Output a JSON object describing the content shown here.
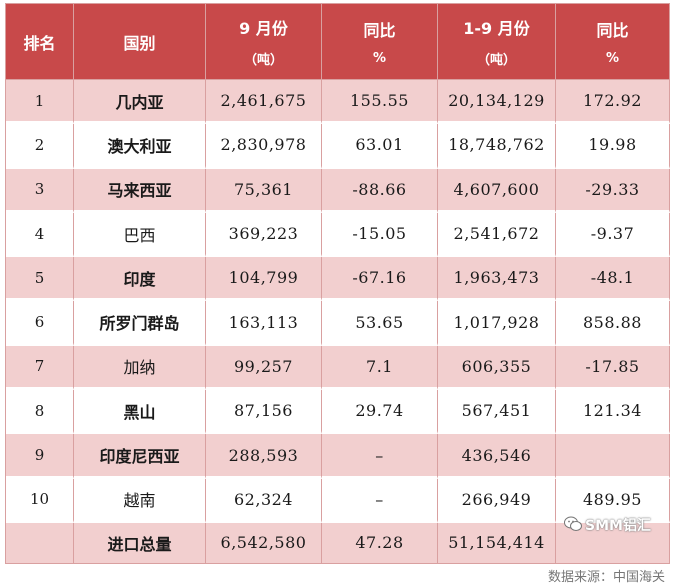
{
  "headers": {
    "rank": "排名",
    "country": "国别",
    "sep": {
      "main": "9 月份",
      "sub": "（吨）"
    },
    "sep_yoy": {
      "main": "同比",
      "sub": "%"
    },
    "ytd": {
      "main": "1-9 月份",
      "sub": "（吨）"
    },
    "ytd_yoy": {
      "main": "同比",
      "sub": "%"
    }
  },
  "rows": [
    {
      "rank": "1",
      "country": "几内亚",
      "sep": "2,461,675",
      "sep_yoy": "155.55",
      "ytd": "20,134,129",
      "ytd_yoy": "172.92"
    },
    {
      "rank": "2",
      "country": "澳大利亚",
      "sep": "2,830,978",
      "sep_yoy": "63.01",
      "ytd": "18,748,762",
      "ytd_yoy": "19.98"
    },
    {
      "rank": "3",
      "country": "马来西亚",
      "sep": "75,361",
      "sep_yoy": "-88.66",
      "ytd": "4,607,600",
      "ytd_yoy": "-29.33"
    },
    {
      "rank": "4",
      "country": "巴西",
      "sep": "369,223",
      "sep_yoy": "-15.05",
      "ytd": "2,541,672",
      "ytd_yoy": "-9.37"
    },
    {
      "rank": "5",
      "country": "印度",
      "sep": "104,799",
      "sep_yoy": "-67.16",
      "ytd": "1,963,473",
      "ytd_yoy": "-48.1"
    },
    {
      "rank": "6",
      "country": "所罗门群岛",
      "sep": "163,113",
      "sep_yoy": "53.65",
      "ytd": "1,017,928",
      "ytd_yoy": "858.88"
    },
    {
      "rank": "7",
      "country": "加纳",
      "sep": "99,257",
      "sep_yoy": "7.1",
      "ytd": "606,355",
      "ytd_yoy": "-17.85"
    },
    {
      "rank": "8",
      "country": "黑山",
      "sep": "87,156",
      "sep_yoy": "29.74",
      "ytd": "567,451",
      "ytd_yoy": "121.34"
    },
    {
      "rank": "9",
      "country": "印度尼西亚",
      "sep": "288,593",
      "sep_yoy": "–",
      "ytd": "436,546",
      "ytd_yoy": ""
    },
    {
      "rank": "10",
      "country": "越南",
      "sep": "62,324",
      "sep_yoy": "–",
      "ytd": "266,949",
      "ytd_yoy": "489.95"
    }
  ],
  "total": {
    "label": "进口总量",
    "sep": "6,542,580",
    "sep_yoy": "47.28",
    "ytd": "51,154,414"
  },
  "watermark": "SMM铝汇",
  "source": "数据来源：中国海关",
  "colors": {
    "header_bg": "#c8494a",
    "odd_row_bg": "#f2cfcf",
    "border": "#d9a0a0"
  }
}
